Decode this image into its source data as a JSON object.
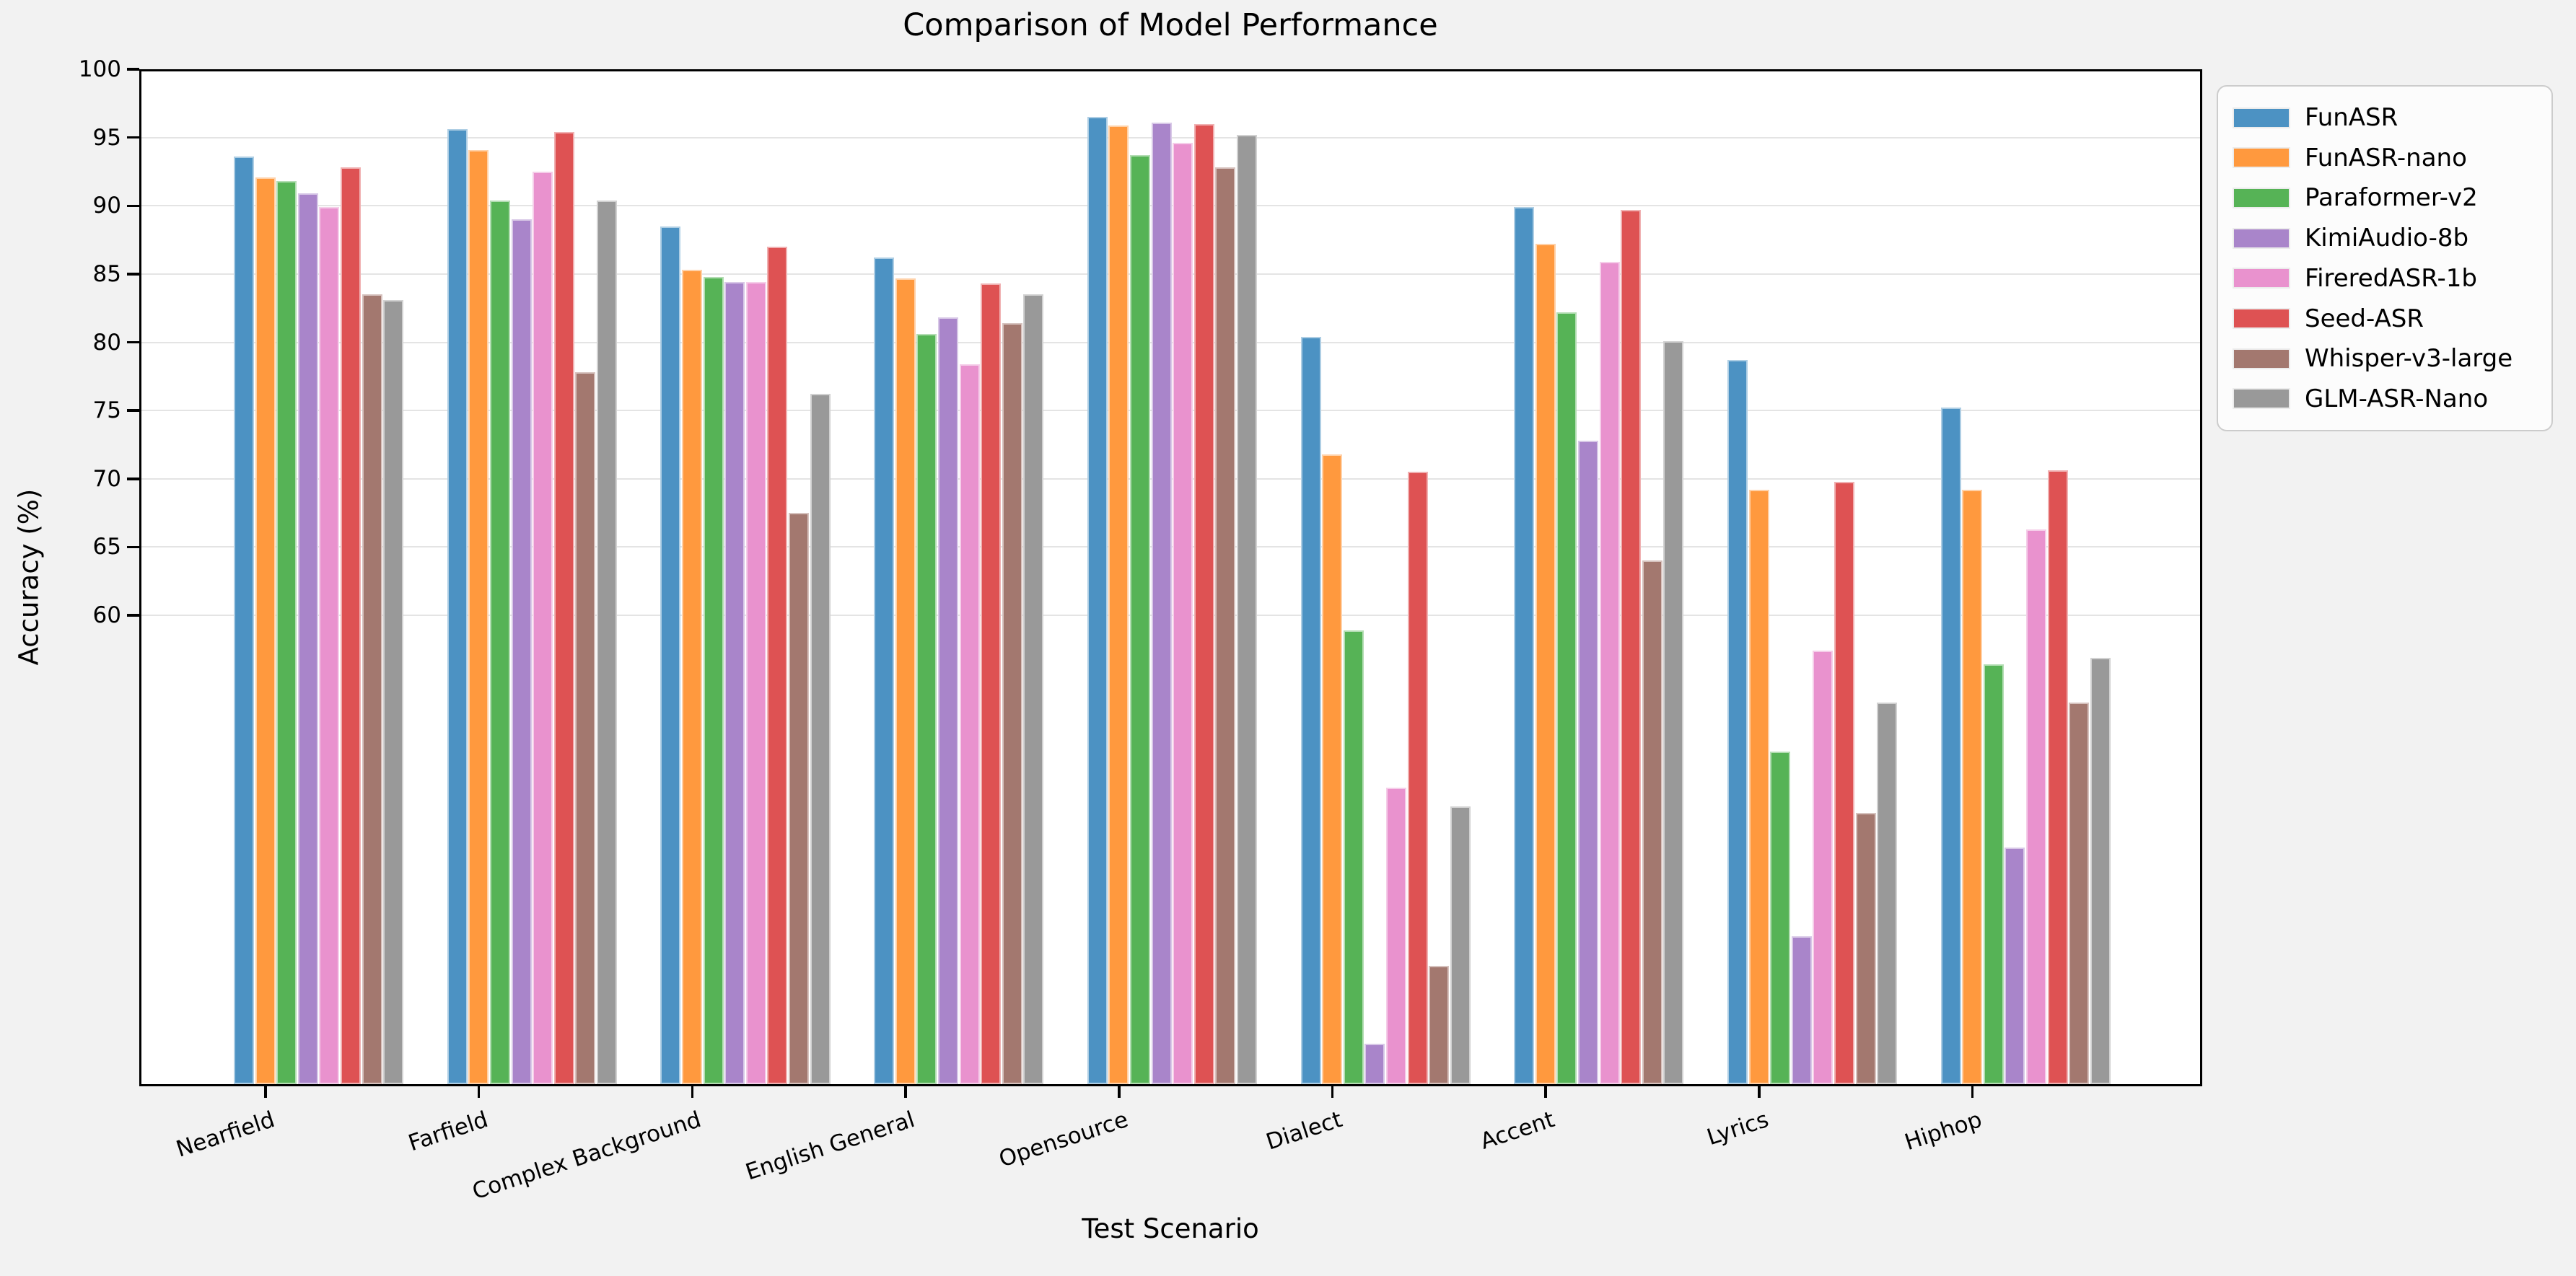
{
  "chart_data": {
    "type": "bar",
    "title": "Comparison of Model Performance",
    "xlabel": "Test Scenario",
    "ylabel": "Accuracy (%)",
    "categories": [
      "Nearfield",
      "Farfield",
      "Complex Background",
      "English General",
      "Opensource",
      "Dialect",
      "Accent",
      "Lyrics",
      "Hiphop"
    ],
    "series": [
      {
        "name": "FunASR",
        "color": "#4c92c3",
        "values": [
          93.6,
          95.6,
          88.5,
          86.2,
          96.5,
          80.4,
          89.9,
          78.7,
          75.2
        ]
      },
      {
        "name": "FunASR-nano",
        "color": "#ff993e",
        "values": [
          92.1,
          94.1,
          85.3,
          84.7,
          95.9,
          71.8,
          87.2,
          69.2,
          69.2
        ]
      },
      {
        "name": "Paraformer-v2",
        "color": "#56b356",
        "values": [
          91.8,
          90.4,
          84.8,
          80.6,
          93.7,
          58.9,
          82.2,
          50.0,
          56.4
        ]
      },
      {
        "name": "KimiAudio-8b",
        "color": "#a985ca",
        "values": [
          90.9,
          89.0,
          84.4,
          81.8,
          96.1,
          28.6,
          72.8,
          36.5,
          43.0
        ]
      },
      {
        "name": "FireredASR-1b",
        "color": "#e992ce",
        "values": [
          89.9,
          92.5,
          84.4,
          78.4,
          94.6,
          47.4,
          85.9,
          57.4,
          66.3
        ]
      },
      {
        "name": "Seed-ASR",
        "color": "#de5253",
        "values": [
          92.8,
          95.4,
          87.0,
          84.3,
          96.0,
          70.5,
          89.7,
          69.8,
          70.6
        ]
      },
      {
        "name": "Whisper-v3-large",
        "color": "#a3786f",
        "values": [
          83.5,
          77.8,
          67.5,
          81.4,
          92.8,
          34.3,
          64.0,
          45.5,
          53.6
        ]
      },
      {
        "name": "GLM-ASR-Nano",
        "color": "#999999",
        "values": [
          83.1,
          90.4,
          76.2,
          83.5,
          95.2,
          46.0,
          80.1,
          53.6,
          56.9
        ]
      }
    ],
    "yticks": [
      100,
      95,
      90,
      85,
      80,
      75,
      70,
      65,
      60
    ],
    "ylim": [
      25.5,
      100
    ],
    "grid": "horizontal",
    "legend_position": "upper-right-outside-plot",
    "background_color": "#f2f2f2",
    "plot_background_color": "#ffffff"
  }
}
